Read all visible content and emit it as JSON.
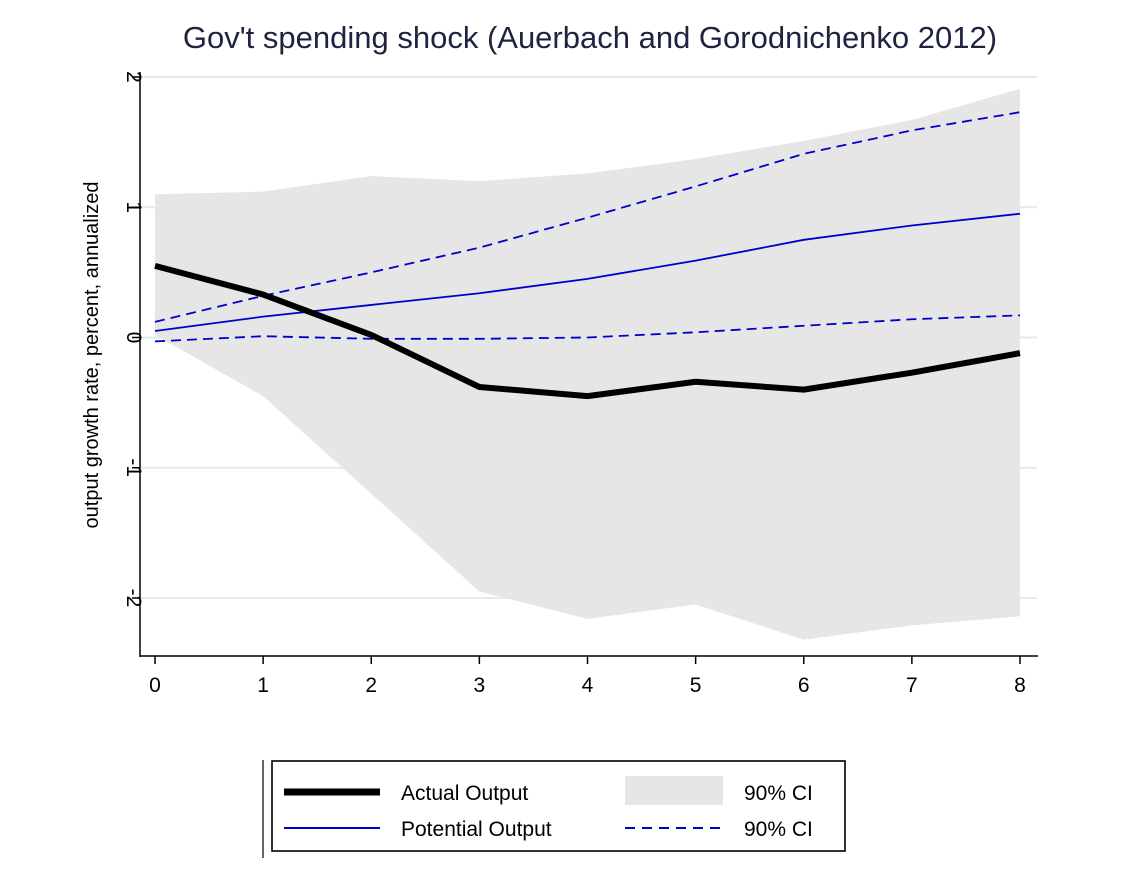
{
  "chart_data": {
    "type": "line",
    "title": "Gov't spending shock (Auerbach and Gorodnichenko 2012)",
    "xlabel": "",
    "ylabel": "output growth rate, percent, annualized",
    "x": [
      0,
      1,
      2,
      3,
      4,
      5,
      6,
      7,
      8
    ],
    "xlim": [
      0,
      8
    ],
    "ylim": [
      -2.45,
      2.0
    ],
    "xticks": [
      "0",
      "1",
      "2",
      "3",
      "4",
      "5",
      "6",
      "7",
      "8"
    ],
    "yticks": [
      "-2",
      "-1",
      "0",
      "1",
      "2"
    ],
    "yticks_values": [
      -2,
      -1,
      0,
      1,
      2
    ],
    "grid": true,
    "legend_position": "bottom",
    "band": {
      "name": "90% CI",
      "color": "#e6e6e6",
      "upper": [
        1.1,
        1.12,
        1.24,
        1.2,
        1.26,
        1.37,
        1.51,
        1.67,
        1.91
      ],
      "lower": [
        0.02,
        -0.45,
        -1.2,
        -1.95,
        -2.16,
        -2.05,
        -2.32,
        -2.21,
        -2.14
      ]
    },
    "series": [
      {
        "name": "Actual Output",
        "style": "thick-solid",
        "color": "#000000",
        "values": [
          0.55,
          0.33,
          0.02,
          -0.38,
          -0.45,
          -0.34,
          -0.4,
          -0.27,
          -0.12
        ]
      },
      {
        "name": "Potential Output",
        "style": "solid",
        "color": "#0000cc",
        "values": [
          0.05,
          0.16,
          0.25,
          0.34,
          0.45,
          0.59,
          0.75,
          0.86,
          0.95
        ]
      },
      {
        "name": "90% CI",
        "style": "dashed",
        "color": "#0000cc",
        "legend": true,
        "values": [
          0.12,
          0.32,
          0.5,
          0.69,
          0.92,
          1.16,
          1.41,
          1.59,
          1.73
        ]
      },
      {
        "name": "90% CI",
        "style": "dashed",
        "color": "#0000cc",
        "legend": false,
        "values": [
          -0.03,
          0.01,
          -0.01,
          -0.01,
          0.0,
          0.04,
          0.09,
          0.14,
          0.17
        ]
      }
    ],
    "legend": [
      {
        "label": "Actual Output",
        "kind": "thick-solid"
      },
      {
        "label": "90% CI",
        "kind": "area"
      },
      {
        "label": "Potential Output",
        "kind": "solid"
      },
      {
        "label": "90% CI",
        "kind": "dashed"
      }
    ]
  }
}
